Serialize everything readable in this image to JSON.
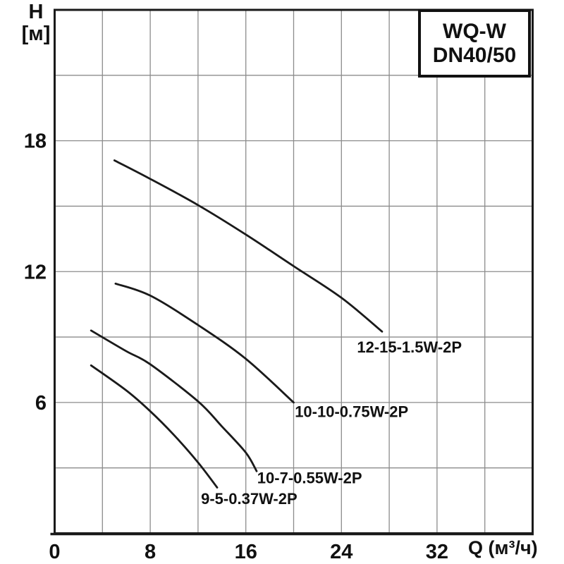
{
  "title_box": {
    "line1": "WQ-W",
    "line2": "DN40/50"
  },
  "y_axis_title": {
    "line1": "H",
    "line2": "[м]"
  },
  "x_axis_title": "Q (м³/ч)",
  "colors": {
    "background": "#ffffff",
    "grid": "#8c8c8c",
    "axis": "#1a1a1a",
    "curve": "#1a1a1a",
    "text": "#111111"
  },
  "chart_data": {
    "type": "line",
    "title": "WQ-W DN40/50",
    "xlabel": "Q (м³/ч)",
    "ylabel": "H [м]",
    "xlim": [
      0,
      40
    ],
    "ylim": [
      0,
      24
    ],
    "x_grid_step": 4,
    "y_grid_step": 3,
    "grid": true,
    "legend": "inline-labels-at-curve-ends",
    "x_ticks": [
      {
        "value": 0,
        "label": "0"
      },
      {
        "value": 8,
        "label": "8"
      },
      {
        "value": 16,
        "label": "16"
      },
      {
        "value": 24,
        "label": "24"
      },
      {
        "value": 32,
        "label": "32"
      }
    ],
    "y_ticks": [
      {
        "value": 6,
        "label": "6"
      },
      {
        "value": 12,
        "label": "12"
      },
      {
        "value": 18,
        "label": "18"
      }
    ],
    "series": [
      {
        "name": "12-15-1.5W-2P",
        "points": [
          [
            5,
            17.1
          ],
          [
            8,
            16.25
          ],
          [
            12,
            15.05
          ],
          [
            16,
            13.7
          ],
          [
            20,
            12.25
          ],
          [
            24,
            10.8
          ],
          [
            27.4,
            9.25
          ]
        ],
        "label_anchor": [
          25.3,
          8.55
        ]
      },
      {
        "name": "10-10-0.75W-2P",
        "points": [
          [
            5.1,
            11.45
          ],
          [
            8,
            10.9
          ],
          [
            12,
            9.55
          ],
          [
            16,
            8.0
          ],
          [
            20,
            6.0
          ]
        ],
        "label_anchor": [
          20.1,
          5.6
        ]
      },
      {
        "name": "10-7-0.55W-2P",
        "points": [
          [
            3.05,
            9.3
          ],
          [
            6,
            8.35
          ],
          [
            8,
            7.75
          ],
          [
            12,
            6.05
          ],
          [
            14,
            4.9
          ],
          [
            16,
            3.7
          ],
          [
            16.9,
            2.85
          ]
        ],
        "label_anchor": [
          16.95,
          2.55
        ]
      },
      {
        "name": "9-5-0.37W-2P",
        "points": [
          [
            3.05,
            7.7
          ],
          [
            6,
            6.55
          ],
          [
            8,
            5.6
          ],
          [
            10,
            4.5
          ],
          [
            12,
            3.25
          ],
          [
            13.6,
            2.1
          ]
        ],
        "label_anchor": [
          12.25,
          1.6
        ]
      }
    ]
  }
}
